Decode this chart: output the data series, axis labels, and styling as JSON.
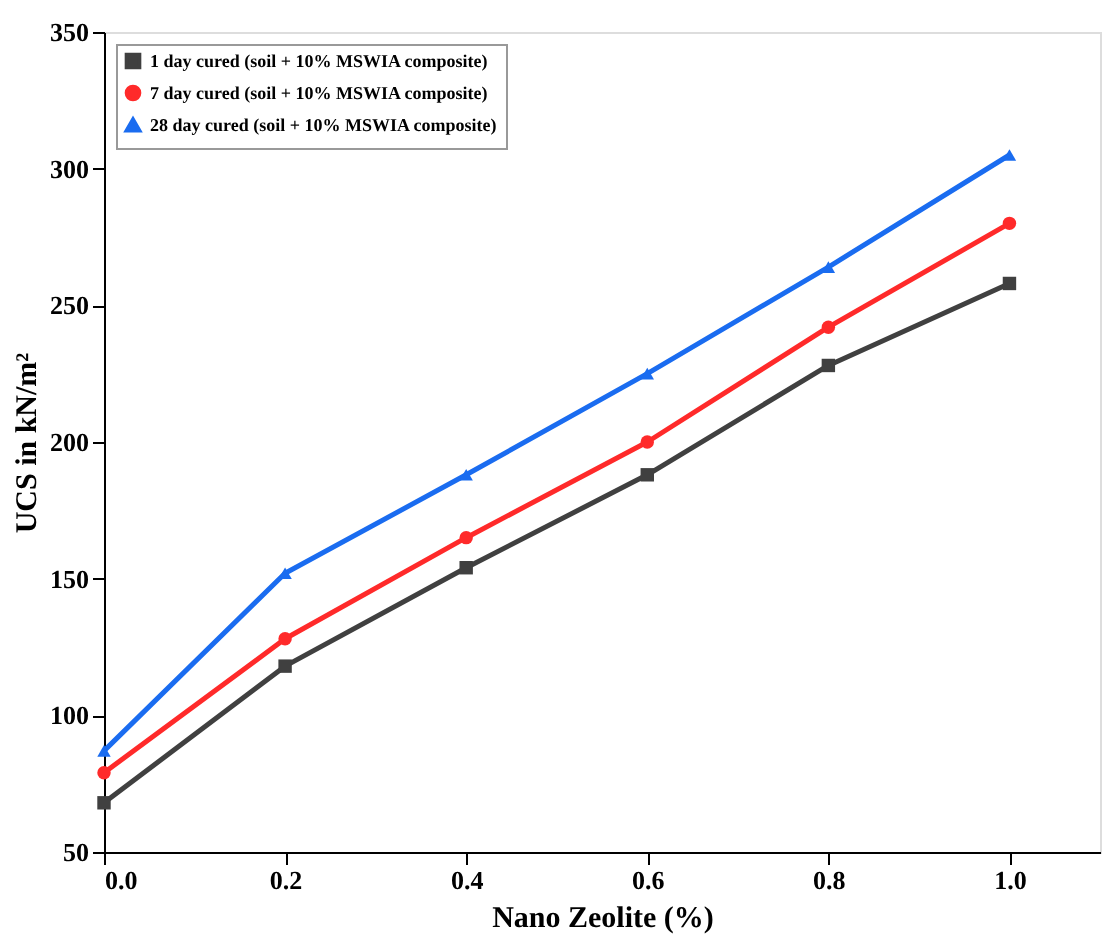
{
  "chart_data": {
    "type": "line",
    "xlabel": "Nano Zeolite (%)",
    "ylabel": "UCS in kN/m²",
    "x": [
      0.0,
      0.2,
      0.4,
      0.6,
      0.8,
      1.0
    ],
    "xlim": [
      0,
      1.1
    ],
    "xticks": [
      {
        "value": 0,
        "label": "0.0"
      },
      0.2,
      0.4,
      0.6,
      0.8,
      {
        "value": 1,
        "label": "1.0"
      }
    ],
    "ylim": [
      50,
      350
    ],
    "yticks": [
      50,
      100,
      150,
      200,
      250,
      300,
      350
    ],
    "grid": false,
    "legend": "top left",
    "line_style": "solid",
    "series": [
      {
        "name": "1 day cured (soil + 10% MSWIA composite)",
        "color": "#404040",
        "marker": "square",
        "values": [
          68,
          118,
          154,
          188,
          228,
          258
        ]
      },
      {
        "name": "7 day cured (soil + 10% MSWIA composite)",
        "color": "#ff2a2a",
        "marker": "circle",
        "values": [
          79,
          128,
          165,
          200,
          242,
          280
        ]
      },
      {
        "name": "28 day cured (soil + 10% MSWIA composite)",
        "color": "#1a6cf0",
        "marker": "triangle",
        "values": [
          87,
          152,
          188,
          225,
          264,
          305
        ]
      }
    ]
  }
}
